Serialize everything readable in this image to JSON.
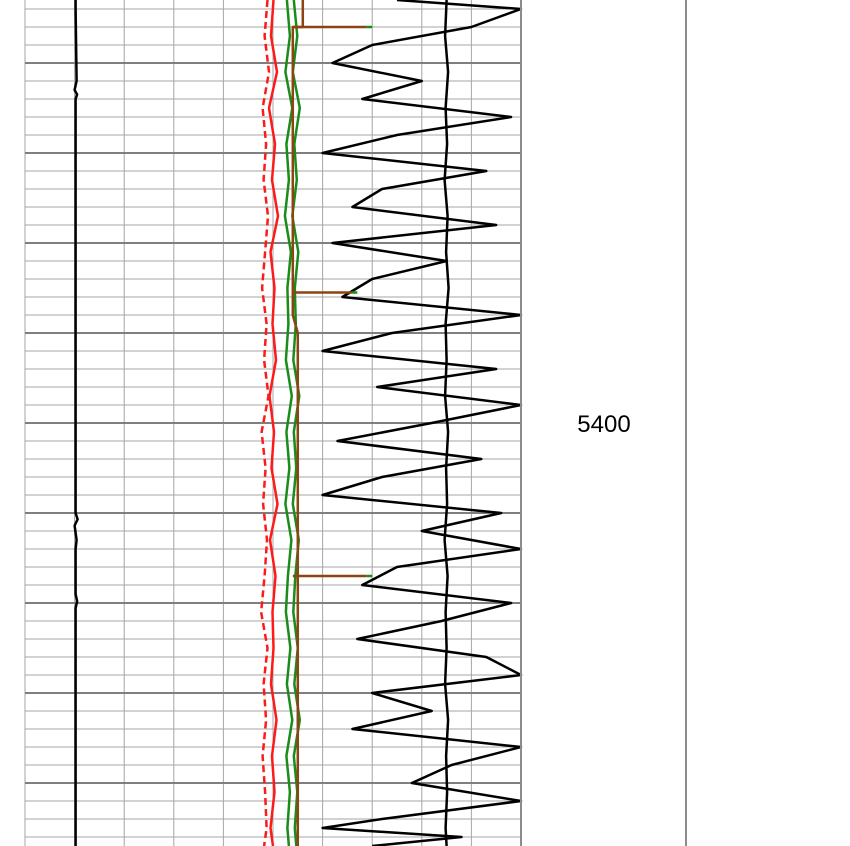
{
  "chart_data": {
    "type": "line",
    "title": "",
    "xlabel": "",
    "ylabel": "",
    "depth_range": [
      5353,
      5447
    ],
    "track_range": [
      0,
      100
    ],
    "depth_grid_minor": 2,
    "depth_grid_major": 10,
    "grid": true,
    "depth_labels": [
      {
        "depth": 5400,
        "text": "5400"
      }
    ],
    "colors": {
      "background": "#ffffff",
      "grid_minor": "#a6a6a6",
      "grid_major": "#7f7f7f",
      "border": "#8c8c8c",
      "red": "#ff1a1a",
      "green": "#1a8c1a",
      "brown": "#8b4513",
      "black": "#000000"
    },
    "series": [
      {
        "color": "#ff1a1a",
        "style": "solid",
        "x": [
          50.1,
          49.6,
          50.8,
          49.2,
          50.4,
          49.8,
          51.0,
          49.5,
          50.3,
          49.9,
          50.6,
          49.3,
          50.2,
          49.7,
          50.9,
          49.4,
          50.5,
          49.9,
          50.1,
          49.6,
          50.7,
          49.8,
          50.3,
          49.5,
          50.0
        ],
        "y": [
          5353,
          5357,
          5361,
          5365,
          5369,
          5373,
          5377,
          5381,
          5385,
          5389,
          5393,
          5397,
          5401,
          5405,
          5409,
          5413,
          5417,
          5421,
          5425,
          5429,
          5433,
          5437,
          5441,
          5445,
          5447
        ]
      },
      {
        "color": "#ff1a1a",
        "style": "dashed",
        "x": [
          48.9,
          48.3,
          49.2,
          47.9,
          48.6,
          48.1,
          49.0,
          48.4,
          47.8,
          48.7,
          48.2,
          49.1,
          47.7,
          48.5,
          48.0,
          48.8,
          48.3,
          47.6,
          48.9,
          48.1,
          48.6,
          47.9,
          48.4,
          48.7,
          48.2
        ],
        "y": [
          5353,
          5357,
          5361,
          5365,
          5369,
          5373,
          5377,
          5381,
          5385,
          5389,
          5393,
          5397,
          5401,
          5405,
          5409,
          5413,
          5417,
          5421,
          5425,
          5429,
          5433,
          5437,
          5441,
          5445,
          5447
        ]
      },
      {
        "color": "#1a8c1a",
        "style": "solid",
        "x": [
          52.8,
          53.4,
          52.5,
          53.9,
          52.7,
          53.2,
          52.4,
          53.6,
          52.9,
          53.1,
          52.6,
          53.8,
          52.7,
          53.3,
          52.5,
          53.7,
          53.0,
          52.6,
          53.5,
          52.8,
          53.9,
          52.7,
          53.4,
          52.9,
          53.2
        ],
        "y": [
          5353,
          5357,
          5361,
          5365,
          5369,
          5373,
          5377,
          5381,
          5385,
          5389,
          5393,
          5397,
          5401,
          5405,
          5409,
          5413,
          5417,
          5421,
          5425,
          5429,
          5433,
          5437,
          5441,
          5445,
          5447
        ]
      },
      {
        "color": "#1a8c1a",
        "style": "solid",
        "x": [
          54.2,
          54.9,
          54.0,
          55.4,
          54.3,
          54.8,
          53.9,
          55.1,
          54.4,
          54.6,
          54.1,
          55.3,
          54.2,
          54.7,
          54.0,
          55.2,
          54.5,
          54.1,
          55.0,
          54.3,
          55.4,
          54.2,
          54.9,
          54.4,
          54.7
        ],
        "y": [
          5353,
          5357,
          5361,
          5365,
          5369,
          5373,
          5377,
          5381,
          5385,
          5389,
          5393,
          5397,
          5401,
          5405,
          5409,
          5413,
          5417,
          5421,
          5425,
          5429,
          5433,
          5437,
          5441,
          5445,
          5447
        ]
      },
      {
        "color": "#8b4513",
        "style": "solid",
        "x": [
          56,
          56,
          54,
          54,
          54,
          54,
          54,
          55,
          55,
          55,
          55,
          55
        ],
        "y": [
          5353,
          5356,
          5356,
          5366,
          5378,
          5386,
          5388,
          5390,
          5400,
          5412,
          5420,
          5447
        ]
      },
      {
        "color": "#000000",
        "style": "solid",
        "x": [
          75,
          100,
          90,
          70,
          62,
          80,
          68,
          98,
          75,
          60,
          93,
          72,
          66,
          95,
          62,
          85,
          70,
          64,
          100,
          74,
          60,
          95,
          71,
          100,
          82,
          63,
          92,
          72,
          60,
          96,
          80,
          100,
          75,
          68,
          98,
          84,
          67,
          93,
          100,
          70,
          82,
          66,
          100,
          86,
          78,
          100,
          72,
          60,
          88,
          70
        ],
        "y": [
          5353,
          5354,
          5356,
          5358,
          5360,
          5362,
          5364,
          5366,
          5368,
          5370,
          5372,
          5374,
          5376,
          5378,
          5380,
          5382,
          5384,
          5386,
          5388,
          5390,
          5392,
          5394,
          5396,
          5398,
          5400,
          5402,
          5404,
          5406,
          5408,
          5410,
          5412,
          5414,
          5416,
          5418,
          5420,
          5422,
          5424,
          5426,
          5428,
          5430,
          5432,
          5434,
          5436,
          5438,
          5440,
          5442,
          5444,
          5445,
          5446,
          5447
        ]
      },
      {
        "color": "#000000",
        "style": "solid",
        "x": [
          85.0,
          84.7,
          85.3,
          84.8,
          85.1,
          84.6,
          85.2,
          84.9,
          85.4,
          84.8,
          85.0,
          84.7,
          85.3,
          84.9,
          85.1,
          84.6,
          85.2,
          84.8,
          85.0,
          84.7,
          85.3,
          84.9,
          85.1,
          84.8,
          85.0
        ],
        "y": [
          5353,
          5357,
          5361,
          5365,
          5369,
          5373,
          5377,
          5381,
          5385,
          5389,
          5393,
          5397,
          5401,
          5405,
          5409,
          5413,
          5417,
          5421,
          5425,
          5429,
          5433,
          5437,
          5441,
          5445,
          5447
        ]
      },
      {
        "color": "#000000",
        "style": "solid",
        "x": [
          10.2,
          10.2,
          10.4,
          10.0,
          10.5,
          10.2,
          10.2,
          10.6,
          10.0,
          10.4,
          10.2,
          10.2,
          10.5,
          10.2,
          10.2
        ],
        "y": [
          5353,
          5354,
          5362,
          5363,
          5363.5,
          5364,
          5410,
          5410.7,
          5411.4,
          5413,
          5414,
          5419,
          5419.8,
          5420.6,
          5447
        ]
      }
    ],
    "markers": [
      {
        "depth": 5356.0,
        "x_start": 54,
        "x_end": 70,
        "tip_length": 6
      },
      {
        "depth": 5385.5,
        "x_start": 54,
        "x_end": 67,
        "tip_length": 6
      },
      {
        "depth": 5417.0,
        "x_start": 54,
        "x_end": 70,
        "tip_length": 6
      }
    ]
  }
}
